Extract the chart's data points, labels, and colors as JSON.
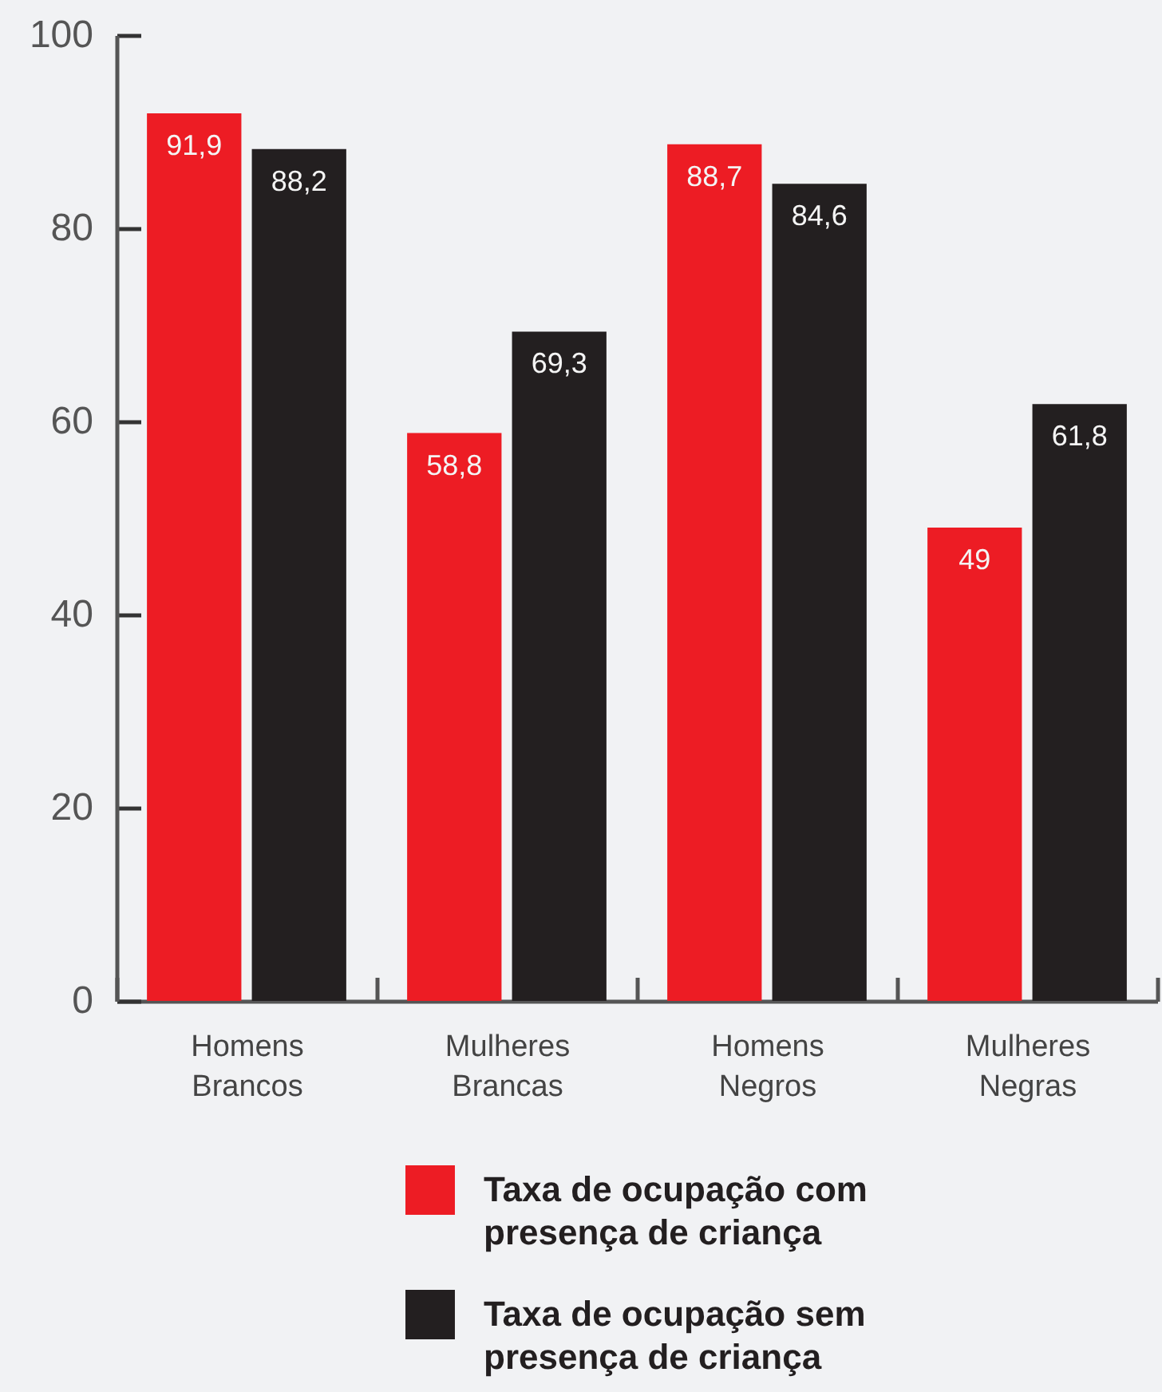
{
  "chart_data": {
    "type": "bar",
    "categories": [
      "Homens Brancos",
      "Mulheres Brancas",
      "Homens Negros",
      "Mulheres Negras"
    ],
    "series": [
      {
        "name": "Taxa de ocupação com presença de criança",
        "color": "#ed1c24",
        "values": [
          91.9,
          58.8,
          88.7,
          49
        ],
        "value_labels": [
          "91,9",
          "58,8",
          "88,7",
          "49"
        ]
      },
      {
        "name": "Taxa de ocupação sem presença de criança",
        "color": "#231f20",
        "values": [
          88.2,
          69.3,
          84.6,
          61.8
        ],
        "value_labels": [
          "88,2",
          "69,3",
          "84,6",
          "61,8"
        ]
      }
    ],
    "ylim": [
      0,
      100
    ],
    "yticks": [
      0,
      20,
      40,
      60,
      80,
      100
    ],
    "grid": false,
    "legend": "bottom"
  }
}
